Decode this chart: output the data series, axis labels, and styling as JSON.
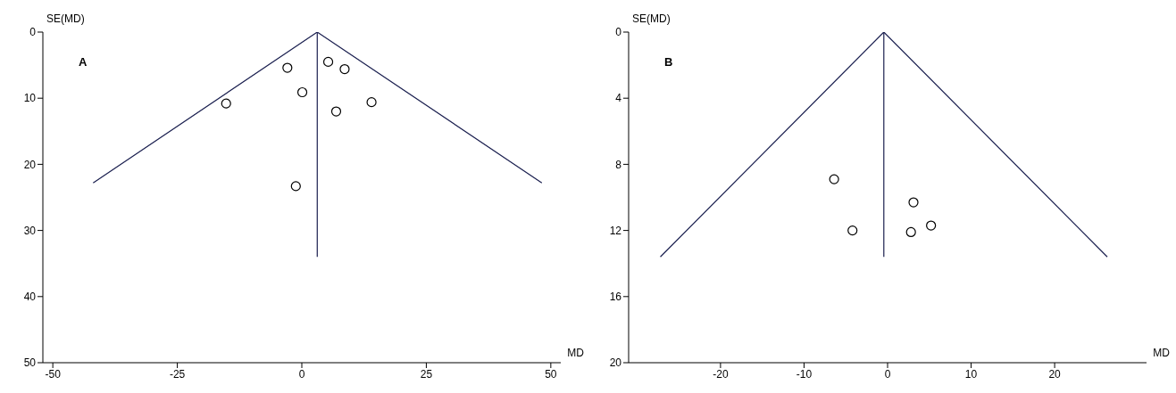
{
  "chart_data": [
    {
      "type": "scatter",
      "xlabel": "MD",
      "ylabel": "SE(MD)",
      "annotations": [
        "A"
      ],
      "xlim": [
        -52,
        52
      ],
      "ylim": [
        50,
        0
      ],
      "xticks": [
        -50,
        -25,
        0,
        25,
        50
      ],
      "yticks": [
        0,
        10,
        20,
        30,
        40,
        50
      ],
      "line_style": "solid",
      "series": [
        {
          "color": "#000000",
          "marker": "circle",
          "x": [
            -2.9,
            5.3,
            8.6,
            0.1,
            -15.2,
            14.0,
            6.9,
            -1.2
          ],
          "values": [
            5.4,
            4.5,
            5.6,
            9.1,
            10.8,
            10.6,
            12.0,
            23.3
          ]
        },
        {
          "type": "line",
          "marker": "none",
          "color": "#1a1f4f",
          "x": [
            -41.9,
            3.1,
            48.2
          ],
          "values": [
            22.8,
            0,
            22.8
          ]
        },
        {
          "type": "line",
          "marker": "none",
          "color": "#1a1f4f",
          "x": [
            3.1,
            3.1
          ],
          "values": [
            0,
            34
          ]
        }
      ]
    },
    {
      "type": "scatter",
      "xlabel": "MD",
      "ylabel": "SE(MD)",
      "annotations": [
        "B"
      ],
      "xlim": [
        -31,
        31
      ],
      "ylim": [
        20,
        0
      ],
      "xticks": [
        -20,
        -10,
        0,
        10,
        20
      ],
      "yticks": [
        0,
        4,
        8,
        12,
        16,
        20
      ],
      "line_style": "solid",
      "series": [
        {
          "color": "#000000",
          "marker": "circle",
          "x": [
            -6.4,
            3.1,
            -4.2,
            2.8,
            5.2
          ],
          "values": [
            8.9,
            10.3,
            12.0,
            12.1,
            11.7
          ]
        },
        {
          "type": "line",
          "marker": "none",
          "color": "#1a1f4f",
          "x": [
            -27.2,
            -0.45,
            26.3
          ],
          "values": [
            13.6,
            0,
            13.6
          ]
        },
        {
          "type": "line",
          "marker": "none",
          "color": "#1a1f4f",
          "x": [
            -0.45,
            -0.45
          ],
          "values": [
            0,
            13.6
          ]
        }
      ]
    }
  ]
}
